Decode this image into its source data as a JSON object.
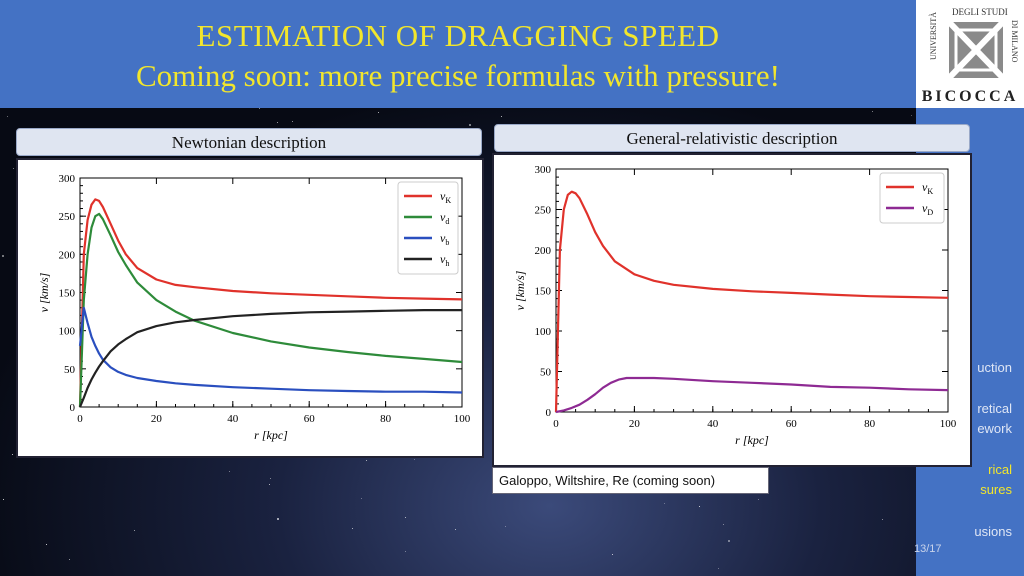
{
  "header": {
    "title": "ESTIMATION OF DRAGGING SPEED",
    "subtitle": "Coming soon: more precise formulas with pressure!"
  },
  "logo": {
    "arc_text": "UNIVERSITÀ DEGLI STUDI DI MILANO",
    "name": "BICOCCA"
  },
  "sidebar": {
    "items": [
      {
        "label": "uction",
        "active": false
      },
      {
        "label": "retical",
        "active": false
      },
      {
        "label": "ework",
        "active": false
      },
      {
        "label": "rical",
        "active": true
      },
      {
        "label": "sures",
        "active": true
      },
      {
        "label": "usions",
        "active": false
      }
    ]
  },
  "page_number": "13/17",
  "panels": {
    "left_label": "Newtonian description",
    "right_label": "General-relativistic description"
  },
  "caption": "Galoppo, Wiltshire, Re (coming soon)",
  "colors": {
    "header_bg": "#4472c4",
    "title": "#f2e62c",
    "red": "#e0322b",
    "green": "#2e8b3a",
    "blue": "#2a4fbf",
    "black": "#222222",
    "purple": "#8e2a93"
  },
  "chart_data": [
    {
      "type": "line",
      "xlabel": "r [kpc]",
      "ylabel": "v [km/s]",
      "xlim": [
        0,
        100
      ],
      "ylim": [
        0,
        300
      ],
      "xticks": [
        "0",
        "20",
        "40",
        "60",
        "80",
        "100"
      ],
      "yticks": [
        "0",
        "50",
        "100",
        "150",
        "200",
        "250",
        "300"
      ],
      "legend_position": "top-right",
      "grid": false,
      "series": [
        {
          "name": "vK",
          "sym": "v",
          "sub": "K",
          "color": "#e0322b",
          "x": [
            0,
            1,
            2,
            3,
            4,
            5,
            6,
            8,
            10,
            12,
            15,
            20,
            25,
            30,
            40,
            50,
            60,
            70,
            80,
            90,
            100
          ],
          "y": [
            0,
            200,
            245,
            265,
            272,
            270,
            262,
            240,
            218,
            200,
            182,
            167,
            160,
            157,
            152,
            149,
            147,
            145,
            143,
            142,
            141
          ]
        },
        {
          "name": "vd",
          "sym": "v",
          "sub": "d",
          "color": "#2e8b3a",
          "x": [
            0,
            1,
            2,
            3,
            4,
            5,
            6,
            8,
            10,
            12,
            15,
            20,
            25,
            30,
            40,
            50,
            60,
            70,
            80,
            90,
            100
          ],
          "y": [
            0,
            140,
            200,
            235,
            250,
            253,
            246,
            225,
            203,
            186,
            163,
            140,
            125,
            113,
            97,
            86,
            78,
            72,
            67,
            63,
            59
          ]
        },
        {
          "name": "vb",
          "sym": "v",
          "sub": "b",
          "color": "#2a4fbf",
          "x": [
            0,
            1,
            2,
            3,
            4,
            5,
            6,
            8,
            10,
            12,
            15,
            20,
            25,
            30,
            40,
            50,
            60,
            70,
            80,
            90,
            100
          ],
          "y": [
            80,
            130,
            110,
            92,
            80,
            70,
            62,
            52,
            46,
            42,
            38,
            34,
            31,
            29,
            26,
            24,
            22,
            21,
            20,
            20,
            19
          ]
        },
        {
          "name": "vh",
          "sym": "v",
          "sub": "h",
          "color": "#222222",
          "x": [
            0,
            1,
            2,
            3,
            4,
            5,
            6,
            8,
            10,
            12,
            15,
            20,
            25,
            30,
            40,
            50,
            60,
            70,
            80,
            90,
            100
          ],
          "y": [
            0,
            12,
            25,
            36,
            45,
            53,
            60,
            73,
            82,
            89,
            98,
            106,
            111,
            114,
            119,
            122,
            124,
            125,
            126,
            127,
            127
          ]
        }
      ]
    },
    {
      "type": "line",
      "xlabel": "r [kpc]",
      "ylabel": "v [km/s]",
      "xlim": [
        0,
        100
      ],
      "ylim": [
        0,
        300
      ],
      "xticks": [
        "0",
        "20",
        "40",
        "60",
        "80",
        "100"
      ],
      "yticks": [
        "0",
        "50",
        "100",
        "150",
        "200",
        "250",
        "300"
      ],
      "legend_position": "top-right",
      "grid": false,
      "series": [
        {
          "name": "vK",
          "sym": "v",
          "sub": "K",
          "color": "#e0322b",
          "x": [
            0,
            1,
            2,
            3,
            4,
            5,
            6,
            8,
            10,
            12,
            15,
            20,
            25,
            30,
            40,
            50,
            60,
            70,
            80,
            90,
            100
          ],
          "y": [
            0,
            200,
            250,
            268,
            272,
            270,
            264,
            244,
            222,
            205,
            186,
            170,
            162,
            157,
            152,
            149,
            147,
            145,
            143,
            142,
            141
          ]
        },
        {
          "name": "vD",
          "sym": "v",
          "sub": "D",
          "color": "#8e2a93",
          "x": [
            0,
            2,
            4,
            6,
            8,
            10,
            12,
            14,
            16,
            18,
            20,
            25,
            30,
            40,
            50,
            60,
            70,
            80,
            90,
            100
          ],
          "y": [
            0,
            2,
            5,
            9,
            15,
            22,
            30,
            36,
            40,
            42,
            42,
            42,
            41,
            38,
            36,
            34,
            31,
            30,
            28,
            27
          ]
        }
      ]
    }
  ]
}
